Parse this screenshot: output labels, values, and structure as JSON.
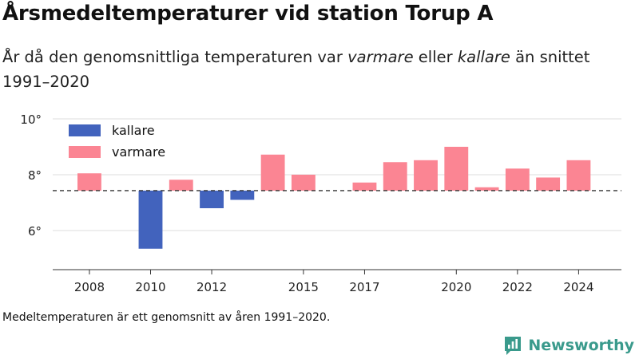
{
  "title": "Årsmedeltemperaturer vid station Torup A",
  "subtitle": {
    "part1": "År då den genomsnittliga temperaturen var ",
    "warm": "varmare",
    "part2": " eller ",
    "cold": "kallare",
    "part3": " än snittet 1991–2020"
  },
  "footnote": "Medeltemperaturen är ett genomsnitt av åren 1991–2020.",
  "brand": {
    "name": "Newsworthy",
    "logo_icon": "newsworthy-logo-icon",
    "color": "#3a9a8c"
  },
  "chart_data": {
    "type": "bar",
    "baseline": 7.43,
    "baseline_style": "dashed",
    "ylim": [
      4.6,
      10.6
    ],
    "yticks": [
      6,
      8,
      10
    ],
    "ytick_labels": [
      "6°",
      "8°",
      "10°"
    ],
    "xlim": [
      2006.8,
      2025.4
    ],
    "xticks": [
      2008,
      2010,
      2012,
      2015,
      2017,
      2020,
      2022,
      2024
    ],
    "xtick_labels": [
      "2008",
      "2010",
      "2012",
      "2015",
      "2017",
      "2020",
      "2022",
      "2024"
    ],
    "grid": true,
    "legend_position": "top-left",
    "colors": {
      "kallare": "#4263bd",
      "varmare": "#fb8593"
    },
    "legend": [
      {
        "key": "kallare",
        "label": "kallare"
      },
      {
        "key": "varmare",
        "label": "varmare"
      }
    ],
    "series": [
      {
        "name": "kallare",
        "x": [
          2010,
          2012,
          2013
        ],
        "values": [
          5.35,
          6.8,
          7.1
        ]
      },
      {
        "name": "varmare",
        "x": [
          2008,
          2011,
          2014,
          2015,
          2017,
          2018,
          2019,
          2020,
          2021,
          2022,
          2023,
          2024
        ],
        "values": [
          8.05,
          7.82,
          8.72,
          8.0,
          7.72,
          8.45,
          8.52,
          9.0,
          7.55,
          8.22,
          7.9,
          8.52
        ]
      }
    ]
  }
}
